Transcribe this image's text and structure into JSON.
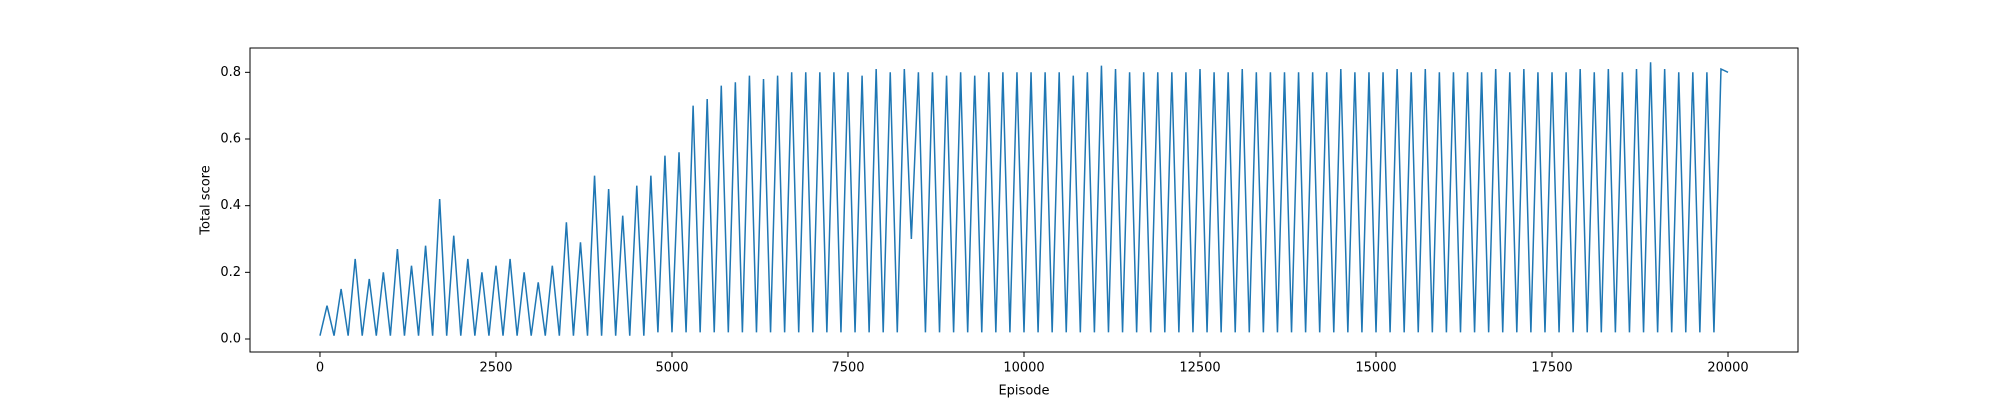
{
  "chart_data": {
    "type": "line",
    "x_label": "Episode",
    "y_label": "Total score",
    "x": [
      0,
      100,
      200,
      300,
      400,
      500,
      600,
      700,
      800,
      900,
      1000,
      1100,
      1200,
      1300,
      1400,
      1500,
      1600,
      1700,
      1800,
      1900,
      2000,
      2100,
      2200,
      2300,
      2400,
      2500,
      2600,
      2700,
      2800,
      2900,
      3000,
      3100,
      3200,
      3300,
      3400,
      3500,
      3600,
      3700,
      3800,
      3900,
      4000,
      4100,
      4200,
      4300,
      4400,
      4500,
      4600,
      4700,
      4800,
      4900,
      5000,
      5100,
      5200,
      5300,
      5400,
      5500,
      5600,
      5700,
      5800,
      5900,
      6000,
      6100,
      6200,
      6300,
      6400,
      6500,
      6600,
      6700,
      6800,
      6900,
      7000,
      7100,
      7200,
      7300,
      7400,
      7500,
      7600,
      7700,
      7800,
      7900,
      8000,
      8100,
      8200,
      8300,
      8400,
      8500,
      8600,
      8700,
      8800,
      8900,
      9000,
      9100,
      9200,
      9300,
      9400,
      9500,
      9600,
      9700,
      9800,
      9900,
      10000,
      10100,
      10200,
      10300,
      10400,
      10500,
      10600,
      10700,
      10800,
      10900,
      11000,
      11100,
      11200,
      11300,
      11400,
      11500,
      11600,
      11700,
      11800,
      11900,
      12000,
      12100,
      12200,
      12300,
      12400,
      12500,
      12600,
      12700,
      12800,
      12900,
      13000,
      13100,
      13200,
      13300,
      13400,
      13500,
      13600,
      13700,
      13800,
      13900,
      14000,
      14100,
      14200,
      14300,
      14400,
      14500,
      14600,
      14700,
      14800,
      14900,
      15000,
      15100,
      15200,
      15300,
      15400,
      15500,
      15600,
      15700,
      15800,
      15900,
      16000,
      16100,
      16200,
      16300,
      16400,
      16500,
      16600,
      16700,
      16800,
      16900,
      17000,
      17100,
      17200,
      17300,
      17400,
      17500,
      17600,
      17700,
      17800,
      17900,
      18000,
      18100,
      18200,
      18300,
      18400,
      18500,
      18600,
      18700,
      18800,
      18900,
      19000,
      19100,
      19200,
      19300,
      19400,
      19500,
      19600,
      19700,
      19800,
      19900,
      20000
    ],
    "series": [
      {
        "color": "#1f77b4",
        "values": [
          0.01,
          0.1,
          0.01,
          0.15,
          0.01,
          0.24,
          0.01,
          0.18,
          0.01,
          0.2,
          0.01,
          0.27,
          0.01,
          0.22,
          0.01,
          0.28,
          0.01,
          0.42,
          0.01,
          0.31,
          0.01,
          0.24,
          0.01,
          0.2,
          0.01,
          0.22,
          0.01,
          0.24,
          0.01,
          0.2,
          0.01,
          0.17,
          0.01,
          0.22,
          0.01,
          0.35,
          0.01,
          0.29,
          0.01,
          0.49,
          0.01,
          0.45,
          0.01,
          0.37,
          0.01,
          0.46,
          0.01,
          0.49,
          0.02,
          0.55,
          0.02,
          0.56,
          0.02,
          0.7,
          0.02,
          0.72,
          0.02,
          0.76,
          0.02,
          0.77,
          0.02,
          0.79,
          0.02,
          0.78,
          0.02,
          0.79,
          0.02,
          0.8,
          0.02,
          0.8,
          0.02,
          0.8,
          0.02,
          0.8,
          0.02,
          0.8,
          0.02,
          0.79,
          0.02,
          0.81,
          0.02,
          0.8,
          0.02,
          0.81,
          0.3,
          0.8,
          0.02,
          0.8,
          0.02,
          0.79,
          0.02,
          0.8,
          0.02,
          0.79,
          0.02,
          0.8,
          0.02,
          0.8,
          0.02,
          0.8,
          0.02,
          0.8,
          0.02,
          0.8,
          0.02,
          0.8,
          0.02,
          0.79,
          0.02,
          0.8,
          0.02,
          0.82,
          0.02,
          0.81,
          0.02,
          0.8,
          0.02,
          0.8,
          0.02,
          0.8,
          0.02,
          0.8,
          0.02,
          0.8,
          0.02,
          0.81,
          0.02,
          0.8,
          0.02,
          0.8,
          0.02,
          0.81,
          0.02,
          0.8,
          0.02,
          0.8,
          0.02,
          0.8,
          0.02,
          0.8,
          0.02,
          0.8,
          0.02,
          0.8,
          0.02,
          0.81,
          0.02,
          0.8,
          0.02,
          0.8,
          0.02,
          0.8,
          0.02,
          0.81,
          0.02,
          0.8,
          0.02,
          0.81,
          0.02,
          0.8,
          0.02,
          0.8,
          0.02,
          0.8,
          0.02,
          0.8,
          0.02,
          0.81,
          0.02,
          0.8,
          0.02,
          0.81,
          0.02,
          0.8,
          0.02,
          0.8,
          0.02,
          0.8,
          0.02,
          0.81,
          0.02,
          0.8,
          0.02,
          0.81,
          0.02,
          0.8,
          0.02,
          0.81,
          0.02,
          0.83,
          0.02,
          0.81,
          0.02,
          0.8,
          0.02,
          0.8,
          0.02,
          0.8,
          0.02,
          0.81,
          0.8
        ]
      }
    ],
    "xlim": [
      -994,
      20994
    ],
    "xticks": [
      0,
      2500,
      5000,
      7500,
      10000,
      12500,
      15000,
      17500,
      20000
    ],
    "ylim": [
      -0.039,
      0.873
    ],
    "yticks": [
      {
        "value": 0,
        "label": "0.0"
      },
      0.2,
      0.4,
      0.6,
      0.8
    ]
  }
}
